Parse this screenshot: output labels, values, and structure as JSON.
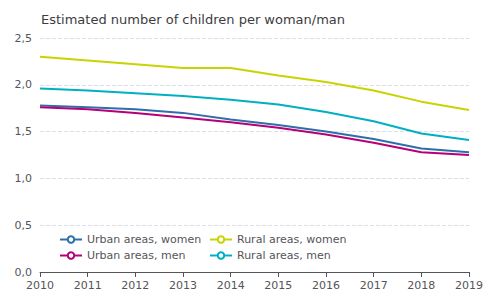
{
  "chart_data": {
    "type": "line",
    "title": "Estimated number of children per woman/man",
    "x": [
      2010,
      2011,
      2012,
      2013,
      2014,
      2015,
      2016,
      2017,
      2018,
      2019
    ],
    "series": [
      {
        "name": "Urban areas, women",
        "color": "#2f6ea8",
        "values": [
          1.78,
          1.76,
          1.74,
          1.7,
          1.63,
          1.57,
          1.5,
          1.42,
          1.32,
          1.28
        ]
      },
      {
        "name": "Rural areas, women",
        "color": "#c8d400",
        "values": [
          2.3,
          2.26,
          2.22,
          2.18,
          2.18,
          2.1,
          2.03,
          1.94,
          1.82,
          1.73
        ]
      },
      {
        "name": "Urban areas, men",
        "color": "#b5007a",
        "values": [
          1.76,
          1.74,
          1.7,
          1.65,
          1.6,
          1.54,
          1.47,
          1.38,
          1.28,
          1.25
        ]
      },
      {
        "name": "Rural areas, men",
        "color": "#00b0c0",
        "values": [
          1.96,
          1.94,
          1.91,
          1.88,
          1.84,
          1.79,
          1.71,
          1.61,
          1.48,
          1.41
        ]
      }
    ],
    "xlim": [
      2010,
      2019
    ],
    "xticks": [
      2010,
      2011,
      2012,
      2013,
      2014,
      2015,
      2016,
      2017,
      2018,
      2019
    ],
    "ylim": [
      0.0,
      2.5
    ],
    "yticks": [
      {
        "value": 0.0,
        "label": "0,0"
      },
      {
        "value": 0.5,
        "label": "0,5"
      },
      {
        "value": 1.0,
        "label": "1,0"
      },
      {
        "value": 1.5,
        "label": "1,5"
      },
      {
        "value": 2.0,
        "label": "2,0"
      },
      {
        "value": 2.5,
        "label": "2,5"
      }
    ],
    "grid": true,
    "legend": "lower left"
  }
}
